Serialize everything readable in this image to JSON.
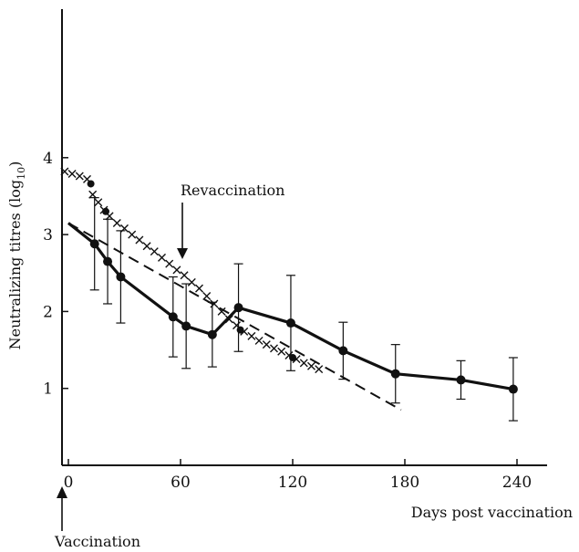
{
  "chart_data": {
    "type": "line",
    "xlabel": "Days post vaccination",
    "ylabel_main": "Neutralizing titres (log",
    "ylabel_sub": "10",
    "ylabel_close": ")",
    "xlim": [
      -5,
      245
    ],
    "ylim": [
      0,
      6
    ],
    "x_ticks": [
      0,
      60,
      120,
      180,
      240
    ],
    "y_ticks": [
      1,
      2,
      3,
      4
    ],
    "annotations": {
      "revaccination": {
        "text": "Revaccination",
        "x": 60
      },
      "vaccination": {
        "text": "Vaccination",
        "x": 0
      }
    },
    "series": [
      {
        "style": "solid-with-markers",
        "x": [
          0,
          14,
          21,
          28,
          56,
          63,
          77,
          91,
          119,
          147,
          175,
          210,
          238
        ],
        "y": [
          3.15,
          2.88,
          2.65,
          2.45,
          1.93,
          1.81,
          1.7,
          2.05,
          1.85,
          1.49,
          1.19,
          1.11,
          0.99
        ],
        "err": [
          0,
          0.6,
          0.55,
          0.6,
          0.52,
          0.55,
          0.42,
          0.57,
          0.62,
          0.37,
          0.38,
          0.25,
          0.41
        ]
      },
      {
        "style": "dashed",
        "x": [
          0,
          178
        ],
        "y": [
          3.15,
          0.72
        ]
      },
      {
        "style": "x-markers",
        "x": [
          -2,
          2,
          6,
          10,
          13,
          16,
          19,
          22,
          26,
          30,
          34,
          38,
          42,
          46,
          50,
          54,
          58,
          62,
          66,
          70,
          74,
          78,
          82,
          86,
          90,
          94,
          98,
          102,
          106,
          110,
          114,
          118,
          122,
          126,
          130,
          134
        ],
        "y": [
          3.82,
          3.79,
          3.76,
          3.72,
          3.52,
          3.42,
          3.32,
          3.24,
          3.15,
          3.08,
          3.0,
          2.93,
          2.85,
          2.78,
          2.7,
          2.62,
          2.54,
          2.47,
          2.38,
          2.3,
          2.2,
          2.1,
          2.0,
          1.9,
          1.82,
          1.74,
          1.68,
          1.62,
          1.57,
          1.52,
          1.48,
          1.43,
          1.38,
          1.33,
          1.29,
          1.25
        ]
      },
      {
        "style": "dot-markers",
        "x": [
          12,
          20,
          92,
          120
        ],
        "y": [
          3.66,
          3.3,
          1.76,
          1.4
        ]
      }
    ]
  }
}
